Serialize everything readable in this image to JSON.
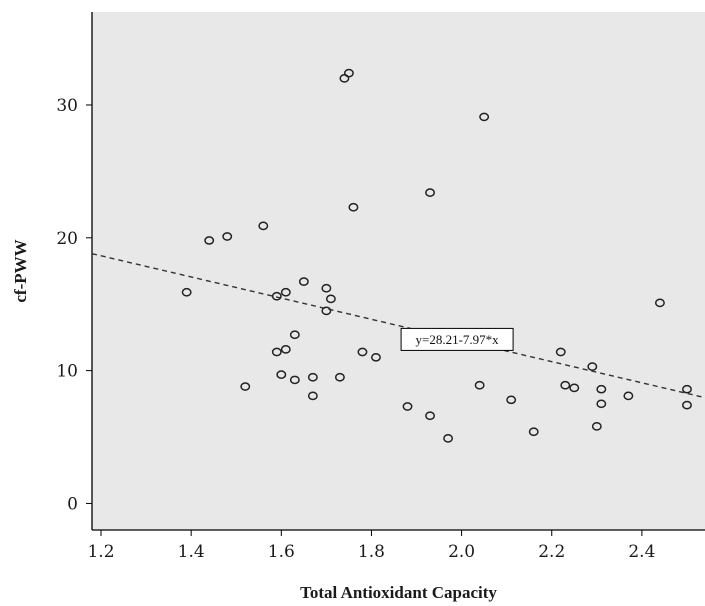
{
  "chart_data": {
    "type": "scatter",
    "title": "",
    "xlabel": "Total Antioxidant Capacity",
    "ylabel": "cf-PWW",
    "xlim": [
      1.18,
      2.54
    ],
    "ylim": [
      -2,
      37
    ],
    "xticks": [
      1.2,
      1.4,
      1.6,
      1.8,
      2.0,
      2.2,
      2.4
    ],
    "xtick_labels": [
      "1.2",
      "1.4",
      "1.6",
      "1.8",
      "2.0",
      "2.2",
      "2.4"
    ],
    "yticks": [
      0,
      10,
      20,
      30
    ],
    "ytick_labels": [
      "0",
      "10",
      "20",
      "30"
    ],
    "grid": false,
    "plot_background": "#e8e8e8",
    "marker_color": "#222222",
    "fit_line": {
      "equation": "y=28.21-7.97*x",
      "intercept": 28.21,
      "slope": -7.97,
      "style": "dashed"
    },
    "points": [
      {
        "x": 1.39,
        "y": 15.9
      },
      {
        "x": 1.44,
        "y": 19.8
      },
      {
        "x": 1.48,
        "y": 20.1
      },
      {
        "x": 1.52,
        "y": 8.8
      },
      {
        "x": 1.56,
        "y": 20.9
      },
      {
        "x": 1.59,
        "y": 15.6
      },
      {
        "x": 1.59,
        "y": 11.4
      },
      {
        "x": 1.6,
        "y": 9.7
      },
      {
        "x": 1.61,
        "y": 15.9
      },
      {
        "x": 1.61,
        "y": 11.6
      },
      {
        "x": 1.63,
        "y": 12.7
      },
      {
        "x": 1.63,
        "y": 9.3
      },
      {
        "x": 1.65,
        "y": 16.7
      },
      {
        "x": 1.67,
        "y": 9.5
      },
      {
        "x": 1.67,
        "y": 8.1
      },
      {
        "x": 1.7,
        "y": 16.2
      },
      {
        "x": 1.7,
        "y": 14.5
      },
      {
        "x": 1.71,
        "y": 15.4
      },
      {
        "x": 1.73,
        "y": 9.5
      },
      {
        "x": 1.74,
        "y": 32.0
      },
      {
        "x": 1.75,
        "y": 32.4
      },
      {
        "x": 1.76,
        "y": 22.3
      },
      {
        "x": 1.78,
        "y": 11.4
      },
      {
        "x": 1.81,
        "y": 11.0
      },
      {
        "x": 1.88,
        "y": 7.3
      },
      {
        "x": 1.93,
        "y": 23.4
      },
      {
        "x": 1.93,
        "y": 6.6
      },
      {
        "x": 1.97,
        "y": 4.9
      },
      {
        "x": 2.04,
        "y": 8.9
      },
      {
        "x": 2.05,
        "y": 29.1
      },
      {
        "x": 2.11,
        "y": 7.8
      },
      {
        "x": 2.16,
        "y": 5.4
      },
      {
        "x": 2.22,
        "y": 11.4
      },
      {
        "x": 2.23,
        "y": 8.9
      },
      {
        "x": 2.25,
        "y": 8.7
      },
      {
        "x": 2.29,
        "y": 10.3
      },
      {
        "x": 2.3,
        "y": 5.8
      },
      {
        "x": 2.31,
        "y": 8.6
      },
      {
        "x": 2.31,
        "y": 7.5
      },
      {
        "x": 2.37,
        "y": 8.1
      },
      {
        "x": 2.44,
        "y": 15.1
      },
      {
        "x": 2.5,
        "y": 8.6
      },
      {
        "x": 2.5,
        "y": 7.4
      }
    ]
  }
}
